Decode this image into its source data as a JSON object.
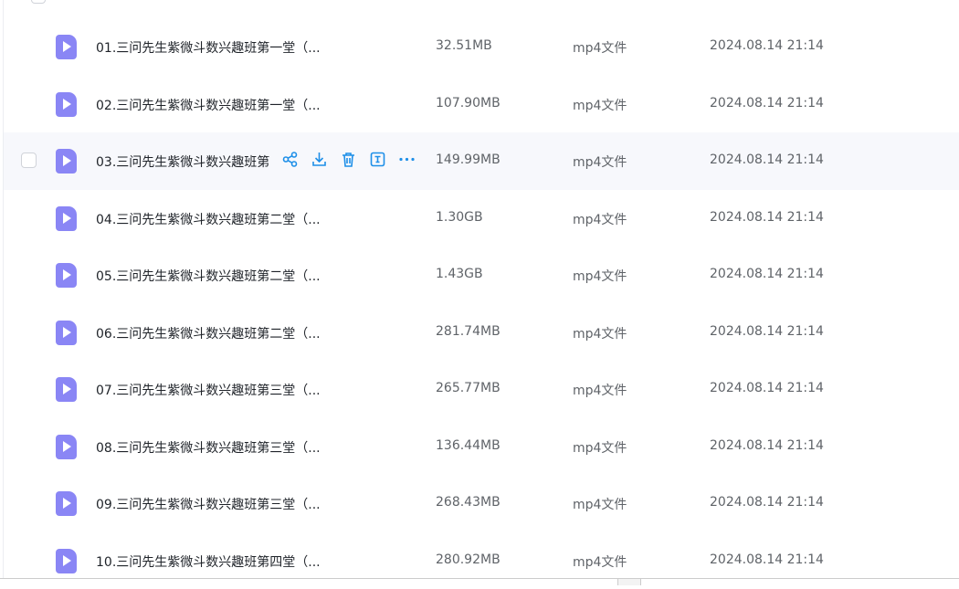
{
  "files": [
    {
      "name": "01.三问先生紫微斗数兴趣班第一堂（...",
      "size": "32.51MB",
      "type": "mp4文件",
      "date": "2024.08.14 21:14"
    },
    {
      "name": "02.三问先生紫微斗数兴趣班第一堂（...",
      "size": "107.90MB",
      "type": "mp4文件",
      "date": "2024.08.14 21:14"
    },
    {
      "name": "03.三问先生紫微斗数兴趣班第",
      "size": "149.99MB",
      "type": "mp4文件",
      "date": "2024.08.14 21:14"
    },
    {
      "name": "04.三问先生紫微斗数兴趣班第二堂（...",
      "size": "1.30GB",
      "type": "mp4文件",
      "date": "2024.08.14 21:14"
    },
    {
      "name": "05.三问先生紫微斗数兴趣班第二堂（...",
      "size": "1.43GB",
      "type": "mp4文件",
      "date": "2024.08.14 21:14"
    },
    {
      "name": "06.三问先生紫微斗数兴趣班第二堂（...",
      "size": "281.74MB",
      "type": "mp4文件",
      "date": "2024.08.14 21:14"
    },
    {
      "name": "07.三问先生紫微斗数兴趣班第三堂（...",
      "size": "265.77MB",
      "type": "mp4文件",
      "date": "2024.08.14 21:14"
    },
    {
      "name": "08.三问先生紫微斗数兴趣班第三堂（...",
      "size": "136.44MB",
      "type": "mp4文件",
      "date": "2024.08.14 21:14"
    },
    {
      "name": "09.三问先生紫微斗数兴趣班第三堂（...",
      "size": "268.43MB",
      "type": "mp4文件",
      "date": "2024.08.14 21:14"
    },
    {
      "name": "10.三问先生紫微斗数兴趣班第四堂（...",
      "size": "280.92MB",
      "type": "mp4文件",
      "date": "2024.08.14 21:14"
    }
  ],
  "hover_row": 2,
  "row_actions": [
    "share-icon",
    "download-icon",
    "delete-icon",
    "rename-icon",
    "more-icon"
  ],
  "accent": "#1e8fe8",
  "file_icon_color": "#8a86f5"
}
